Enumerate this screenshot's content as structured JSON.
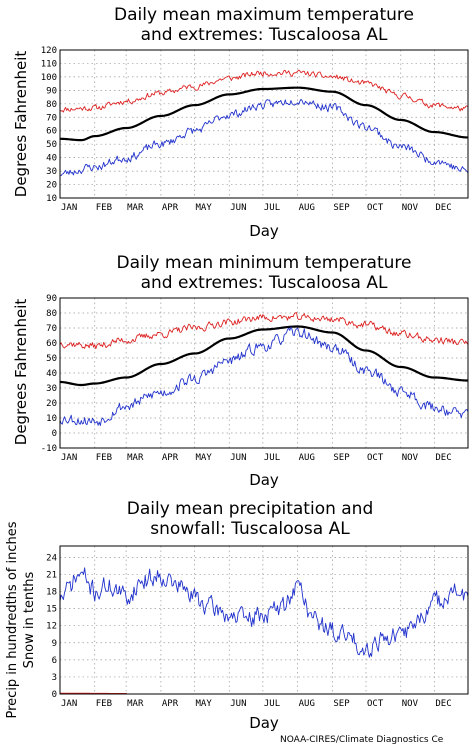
{
  "credit": "NOAA-CIRES/Climate Diagnostics Ce",
  "colors": {
    "record_high": "#dd2222",
    "record_low": "#2233cc",
    "mean": "#000000",
    "snow": "#dd2222"
  },
  "chart_data": [
    {
      "id": "max",
      "type": "line",
      "title_lines": [
        "Daily mean maximum temperature",
        "and extremes: Tuscaloosa AL"
      ],
      "xlabel": "Day",
      "ylabel": "Degrees Fahrenheit",
      "ylim": [
        10,
        120
      ],
      "yticks": [
        10,
        20,
        30,
        40,
        50,
        60,
        70,
        80,
        90,
        100,
        110,
        120
      ],
      "xticks": [
        "JAN",
        "FEB",
        "MAR",
        "APR",
        "MAY",
        "JUN",
        "JUL",
        "AUG",
        "SEP",
        "OCT",
        "NOV",
        "DEC"
      ],
      "grid": true,
      "series": [
        {
          "role": "record_high",
          "noise": 3.5,
          "seed": 11,
          "knots": [
            [
              1,
              76
            ],
            [
              32,
              77
            ],
            [
              60,
              82
            ],
            [
              91,
              88
            ],
            [
              121,
              93
            ],
            [
              152,
              99
            ],
            [
              182,
              103
            ],
            [
              213,
              103
            ],
            [
              244,
              100
            ],
            [
              274,
              95
            ],
            [
              305,
              86
            ],
            [
              335,
              79
            ],
            [
              365,
              76
            ]
          ]
        },
        {
          "role": "mean",
          "noise": 0,
          "knots": [
            [
              1,
              54
            ],
            [
              20,
              53
            ],
            [
              32,
              56
            ],
            [
              60,
              62
            ],
            [
              91,
              71
            ],
            [
              121,
              79
            ],
            [
              152,
              87
            ],
            [
              182,
              91
            ],
            [
              213,
              92
            ],
            [
              244,
              89
            ],
            [
              274,
              79
            ],
            [
              305,
              68
            ],
            [
              335,
              59
            ],
            [
              365,
              55
            ]
          ]
        },
        {
          "role": "record_low",
          "noise": 5,
          "seed": 23,
          "knots": [
            [
              1,
              28
            ],
            [
              32,
              33
            ],
            [
              60,
              40
            ],
            [
              91,
              50
            ],
            [
              121,
              60
            ],
            [
              152,
              72
            ],
            [
              182,
              79
            ],
            [
              213,
              83
            ],
            [
              244,
              77
            ],
            [
              274,
              63
            ],
            [
              305,
              48
            ],
            [
              335,
              38
            ],
            [
              365,
              30
            ]
          ]
        }
      ]
    },
    {
      "id": "min",
      "type": "line",
      "title_lines": [
        "Daily mean minimum temperature",
        "and extremes: Tuscaloosa AL"
      ],
      "xlabel": "Day",
      "ylabel": "Degrees Fahrenheit",
      "ylim": [
        -10,
        90
      ],
      "yticks": [
        -10,
        0,
        10,
        20,
        30,
        40,
        50,
        60,
        70,
        80,
        90
      ],
      "xticks": [
        "JAN",
        "FEB",
        "MAR",
        "APR",
        "MAY",
        "JUN",
        "JUL",
        "AUG",
        "SEP",
        "OCT",
        "NOV",
        "DEC"
      ],
      "grid": true,
      "series": [
        {
          "role": "record_high",
          "noise": 4,
          "seed": 37,
          "knots": [
            [
              1,
              60
            ],
            [
              32,
              58
            ],
            [
              60,
              62
            ],
            [
              91,
              66
            ],
            [
              121,
              70
            ],
            [
              152,
              74
            ],
            [
              182,
              77
            ],
            [
              213,
              77
            ],
            [
              244,
              76
            ],
            [
              274,
              72
            ],
            [
              305,
              66
            ],
            [
              335,
              62
            ],
            [
              365,
              60
            ]
          ]
        },
        {
          "role": "mean",
          "noise": 0,
          "knots": [
            [
              1,
              34
            ],
            [
              20,
              32
            ],
            [
              32,
              33
            ],
            [
              60,
              37
            ],
            [
              91,
              46
            ],
            [
              121,
              53
            ],
            [
              152,
              63
            ],
            [
              182,
              69
            ],
            [
              213,
              71
            ],
            [
              244,
              67
            ],
            [
              274,
              55
            ],
            [
              305,
              44
            ],
            [
              335,
              37
            ],
            [
              365,
              35
            ]
          ]
        },
        {
          "role": "record_low",
          "noise": 6,
          "seed": 53,
          "knots": [
            [
              1,
              10
            ],
            [
              32,
              8
            ],
            [
              60,
              18
            ],
            [
              91,
              27
            ],
            [
              121,
              36
            ],
            [
              152,
              48
            ],
            [
              182,
              58
            ],
            [
              213,
              67
            ],
            [
              244,
              57
            ],
            [
              274,
              42
            ],
            [
              305,
              28
            ],
            [
              335,
              17
            ],
            [
              365,
              12
            ]
          ]
        }
      ]
    },
    {
      "id": "precip",
      "type": "line",
      "title_lines": [
        "Daily mean precipitation and",
        "snowfall: Tuscaloosa AL"
      ],
      "xlabel": "Day",
      "ylabel_lines": [
        "Precip in hundredths of inches",
        "Snow in tenths"
      ],
      "ylim": [
        0,
        26
      ],
      "yticks": [
        0,
        3,
        6,
        9,
        12,
        15,
        18,
        21,
        24
      ],
      "xticks": [
        "JAN",
        "FEB",
        "MAR",
        "APR",
        "MAY",
        "JUN",
        "JUL",
        "AUG",
        "SEP",
        "OCT",
        "NOV",
        "DEC"
      ],
      "grid": true,
      "series": [
        {
          "role": "record_low",
          "noise": 2.8,
          "seed": 71,
          "knots": [
            [
              1,
              17
            ],
            [
              20,
              21
            ],
            [
              32,
              18
            ],
            [
              45,
              19
            ],
            [
              60,
              17
            ],
            [
              75,
              20
            ],
            [
              91,
              21
            ],
            [
              106,
              19
            ],
            [
              121,
              17
            ],
            [
              137,
              15
            ],
            [
              152,
              14
            ],
            [
              167,
              13
            ],
            [
              182,
              14
            ],
            [
              198,
              15
            ],
            [
              213,
              19
            ],
            [
              228,
              13
            ],
            [
              244,
              11
            ],
            [
              259,
              10
            ],
            [
              274,
              8
            ],
            [
              289,
              10
            ],
            [
              305,
              10
            ],
            [
              320,
              13
            ],
            [
              335,
              16
            ],
            [
              350,
              18
            ],
            [
              365,
              17
            ]
          ]
        },
        {
          "role": "snow",
          "noise": 0,
          "knots": [
            [
              1,
              0.15
            ],
            [
              60,
              0.1
            ],
            [
              61,
              0
            ],
            [
              365,
              0
            ]
          ]
        }
      ]
    }
  ]
}
